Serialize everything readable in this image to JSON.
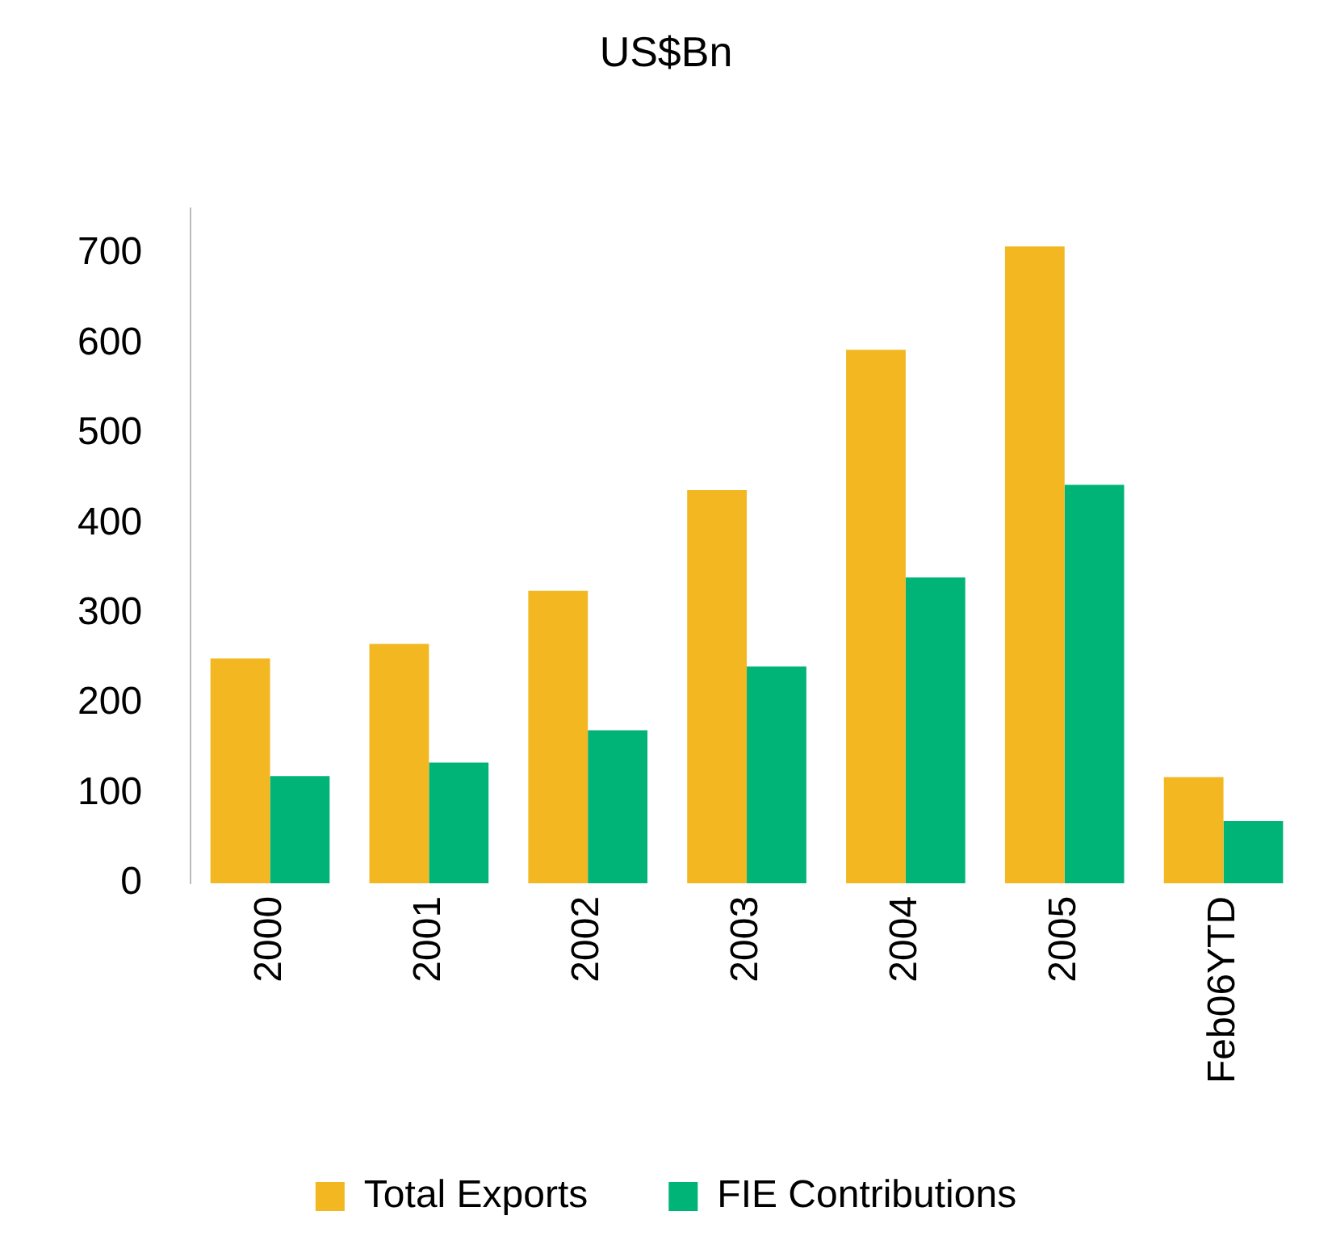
{
  "chart_data": {
    "type": "bar",
    "title": "US$Bn",
    "categories": [
      "2000",
      "2001",
      "2002",
      "2003",
      "2004",
      "2005",
      "Feb06YTD"
    ],
    "series": [
      {
        "name": "Total Exports",
        "color": "#f2b721",
        "values": [
          250,
          266,
          325,
          437,
          593,
          708,
          118
        ]
      },
      {
        "name": "FIE Contributions",
        "color": "#00b377",
        "values": [
          119,
          134,
          170,
          241,
          340,
          443,
          69
        ]
      }
    ],
    "ylim": [
      0,
      750
    ],
    "yticks": [
      0,
      100,
      200,
      300,
      400,
      500,
      600,
      700
    ],
    "grid": false,
    "legend": "bottom"
  }
}
